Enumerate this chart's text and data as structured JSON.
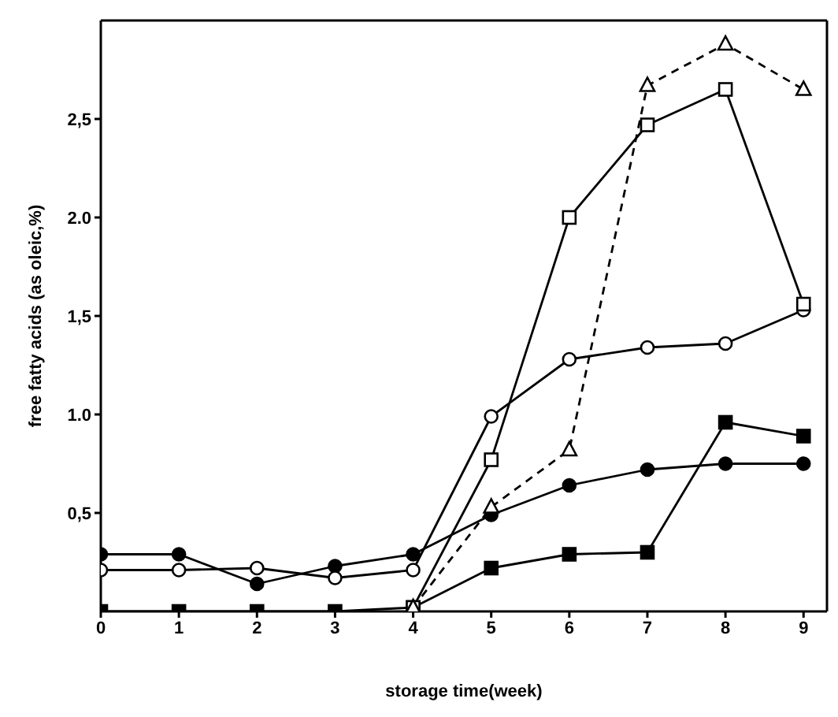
{
  "chart_data": {
    "type": "line",
    "xlabel": "storage time(week)",
    "ylabel": "free fatty acids (as oleic,%)",
    "x": [
      0,
      1,
      2,
      3,
      4,
      5,
      6,
      7,
      8,
      9
    ],
    "xlim": [
      0,
      9.3
    ],
    "xticks": [
      0,
      1,
      2,
      3,
      4,
      5,
      6,
      7,
      8,
      9
    ],
    "ylim": [
      0,
      3.0
    ],
    "yticks": [
      {
        "value": 0.5,
        "label": "0,5"
      },
      {
        "value": 1.0,
        "label": "1.0"
      },
      {
        "value": 1.5,
        "label": "1,5"
      },
      {
        "value": 2.0,
        "label": "2.0"
      },
      {
        "value": 2.5,
        "label": "2,5"
      }
    ],
    "grid": false,
    "legend": false,
    "series": [
      {
        "color": "#000000",
        "marker": "circle",
        "line_style": "solid",
        "colors": [
          "#000000",
          "#000000",
          "#000000",
          "#000000",
          "#000000",
          "#000000",
          "#000000",
          "#000000",
          "#000000",
          "#000000"
        ],
        "values": [
          0.29,
          0.29,
          0.14,
          0.23,
          0.29,
          0.49,
          0.64,
          0.72,
          0.75,
          0.75
        ]
      },
      {
        "color": "#000000",
        "marker": "circle",
        "line_style": "solid",
        "colors": [
          "#ffffff",
          "#ffffff",
          "#ffffff",
          "#ffffff",
          "#ffffff",
          "#ffffff",
          "#ffffff",
          "#ffffff",
          "#ffffff",
          "#ffffff"
        ],
        "values": [
          0.21,
          0.21,
          0.22,
          0.17,
          0.21,
          0.99,
          1.28,
          1.34,
          1.36,
          1.53
        ]
      },
      {
        "color": "#000000",
        "marker": "square",
        "line_style": "solid",
        "colors": [
          "#000000",
          "#000000",
          "#000000",
          "#000000",
          "#000000",
          "#000000",
          "#000000",
          "#000000",
          "#000000",
          "#000000"
        ],
        "values": [
          0,
          0,
          0,
          0,
          0.02,
          0.22,
          0.29,
          0.3,
          0.96,
          0.89
        ]
      },
      {
        "color": "#000000",
        "marker": "square",
        "line_style": "solid",
        "colors": [
          null,
          null,
          null,
          null,
          "#ffffff",
          "#ffffff",
          "#ffffff",
          "#ffffff",
          "#ffffff",
          "#ffffff"
        ],
        "values": [
          null,
          null,
          null,
          null,
          0.02,
          0.77,
          2.0,
          2.47,
          2.65,
          1.56
        ]
      },
      {
        "color": "#000000",
        "marker": "triangle",
        "line_style": "dashed",
        "colors": [
          null,
          null,
          null,
          null,
          "#ffffff",
          "#ffffff",
          "#ffffff",
          "#ffffff",
          "#ffffff",
          "#ffffff"
        ],
        "values": [
          null,
          null,
          null,
          null,
          0.02,
          0.53,
          0.82,
          2.67,
          2.88,
          2.65
        ]
      }
    ]
  }
}
